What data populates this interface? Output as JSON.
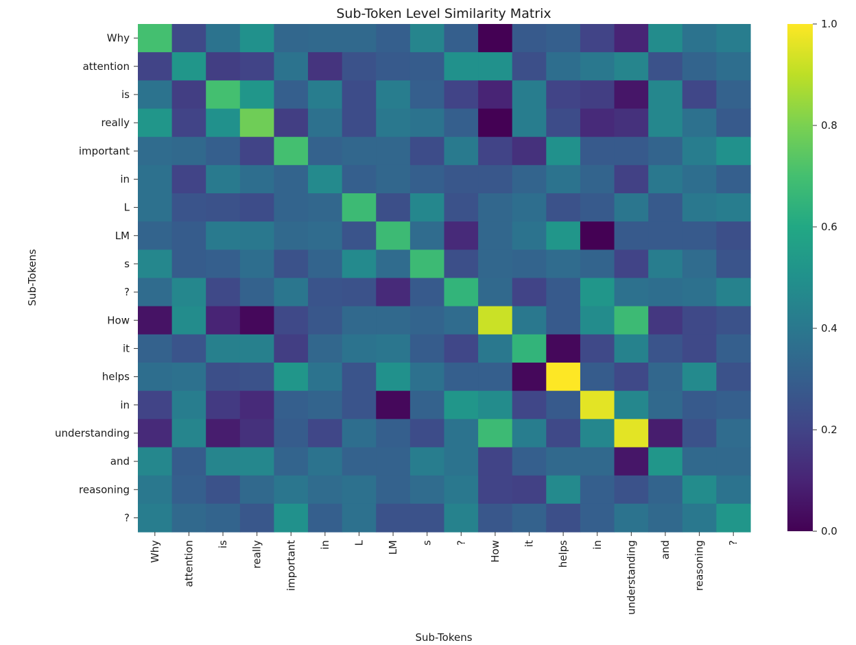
{
  "chart_data": {
    "type": "heatmap",
    "title": "Sub-Token Level Similarity Matrix",
    "xlabel": "Sub-Tokens",
    "ylabel": "Sub-Tokens",
    "x_categories": [
      "Why",
      "attention",
      "is",
      "really",
      "important",
      "in",
      "L",
      "LM",
      "s",
      "?",
      "How",
      "it",
      "helps",
      "in",
      "understanding",
      "and",
      "reasoning",
      "?"
    ],
    "y_categories": [
      "Why",
      "attention",
      "is",
      "really",
      "important",
      "in",
      "L",
      "LM",
      "s",
      "?",
      "How",
      "it",
      "helps",
      "in",
      "understanding",
      "and",
      "reasoning",
      "?"
    ],
    "colormap": "viridis",
    "vmin": 0.0,
    "vmax": 1.0,
    "colorbar_ticks": [
      "0.0",
      "0.2",
      "0.4",
      "0.6",
      "0.8",
      "1.0"
    ],
    "values": [
      [
        0.7,
        0.22,
        0.38,
        0.5,
        0.33,
        0.34,
        0.34,
        0.3,
        0.45,
        0.3,
        0.0,
        0.28,
        0.3,
        0.2,
        0.1,
        0.48,
        0.38,
        0.42
      ],
      [
        0.2,
        0.52,
        0.18,
        0.2,
        0.38,
        0.15,
        0.25,
        0.28,
        0.29,
        0.5,
        0.5,
        0.24,
        0.36,
        0.4,
        0.45,
        0.25,
        0.32,
        0.36
      ],
      [
        0.38,
        0.18,
        0.7,
        0.52,
        0.3,
        0.42,
        0.23,
        0.42,
        0.3,
        0.2,
        0.1,
        0.42,
        0.2,
        0.18,
        0.06,
        0.46,
        0.21,
        0.31
      ],
      [
        0.52,
        0.2,
        0.5,
        0.78,
        0.18,
        0.37,
        0.23,
        0.4,
        0.38,
        0.3,
        0.0,
        0.42,
        0.23,
        0.12,
        0.14,
        0.46,
        0.37,
        0.28
      ],
      [
        0.35,
        0.34,
        0.3,
        0.2,
        0.7,
        0.31,
        0.33,
        0.33,
        0.23,
        0.41,
        0.2,
        0.14,
        0.5,
        0.28,
        0.28,
        0.32,
        0.42,
        0.5
      ],
      [
        0.37,
        0.2,
        0.41,
        0.36,
        0.32,
        0.47,
        0.3,
        0.33,
        0.3,
        0.27,
        0.27,
        0.32,
        0.38,
        0.32,
        0.19,
        0.4,
        0.36,
        0.3
      ],
      [
        0.37,
        0.26,
        0.25,
        0.23,
        0.32,
        0.33,
        0.68,
        0.24,
        0.46,
        0.25,
        0.33,
        0.36,
        0.25,
        0.28,
        0.39,
        0.28,
        0.4,
        0.42
      ],
      [
        0.32,
        0.29,
        0.41,
        0.4,
        0.34,
        0.35,
        0.26,
        0.68,
        0.35,
        0.12,
        0.33,
        0.38,
        0.52,
        0.0,
        0.28,
        0.28,
        0.28,
        0.24
      ],
      [
        0.46,
        0.29,
        0.3,
        0.36,
        0.25,
        0.32,
        0.47,
        0.35,
        0.68,
        0.24,
        0.33,
        0.32,
        0.35,
        0.32,
        0.2,
        0.42,
        0.35,
        0.26
      ],
      [
        0.35,
        0.46,
        0.22,
        0.31,
        0.39,
        0.26,
        0.25,
        0.12,
        0.28,
        0.65,
        0.34,
        0.2,
        0.28,
        0.52,
        0.37,
        0.36,
        0.37,
        0.44
      ],
      [
        0.05,
        0.48,
        0.1,
        0.02,
        0.22,
        0.27,
        0.34,
        0.34,
        0.32,
        0.35,
        0.92,
        0.4,
        0.28,
        0.48,
        0.68,
        0.16,
        0.22,
        0.25
      ],
      [
        0.31,
        0.26,
        0.43,
        0.43,
        0.18,
        0.33,
        0.38,
        0.39,
        0.29,
        0.21,
        0.4,
        0.65,
        0.02,
        0.22,
        0.44,
        0.26,
        0.22,
        0.3
      ],
      [
        0.36,
        0.37,
        0.24,
        0.25,
        0.52,
        0.38,
        0.26,
        0.5,
        0.37,
        0.3,
        0.3,
        0.02,
        1.0,
        0.29,
        0.22,
        0.33,
        0.47,
        0.25
      ],
      [
        0.2,
        0.42,
        0.17,
        0.12,
        0.3,
        0.32,
        0.26,
        0.02,
        0.31,
        0.52,
        0.48,
        0.21,
        0.28,
        0.96,
        0.46,
        0.34,
        0.28,
        0.3
      ],
      [
        0.12,
        0.45,
        0.08,
        0.14,
        0.29,
        0.21,
        0.36,
        0.3,
        0.23,
        0.38,
        0.68,
        0.42,
        0.22,
        0.46,
        0.96,
        0.08,
        0.25,
        0.35
      ],
      [
        0.46,
        0.29,
        0.45,
        0.46,
        0.32,
        0.38,
        0.31,
        0.31,
        0.42,
        0.38,
        0.2,
        0.3,
        0.34,
        0.34,
        0.06,
        0.52,
        0.34,
        0.34
      ],
      [
        0.4,
        0.3,
        0.25,
        0.34,
        0.39,
        0.35,
        0.37,
        0.31,
        0.35,
        0.4,
        0.2,
        0.19,
        0.47,
        0.3,
        0.25,
        0.32,
        0.48,
        0.38
      ],
      [
        0.42,
        0.34,
        0.32,
        0.27,
        0.5,
        0.3,
        0.37,
        0.25,
        0.25,
        0.44,
        0.27,
        0.31,
        0.24,
        0.3,
        0.38,
        0.34,
        0.4,
        0.52
      ]
    ]
  }
}
